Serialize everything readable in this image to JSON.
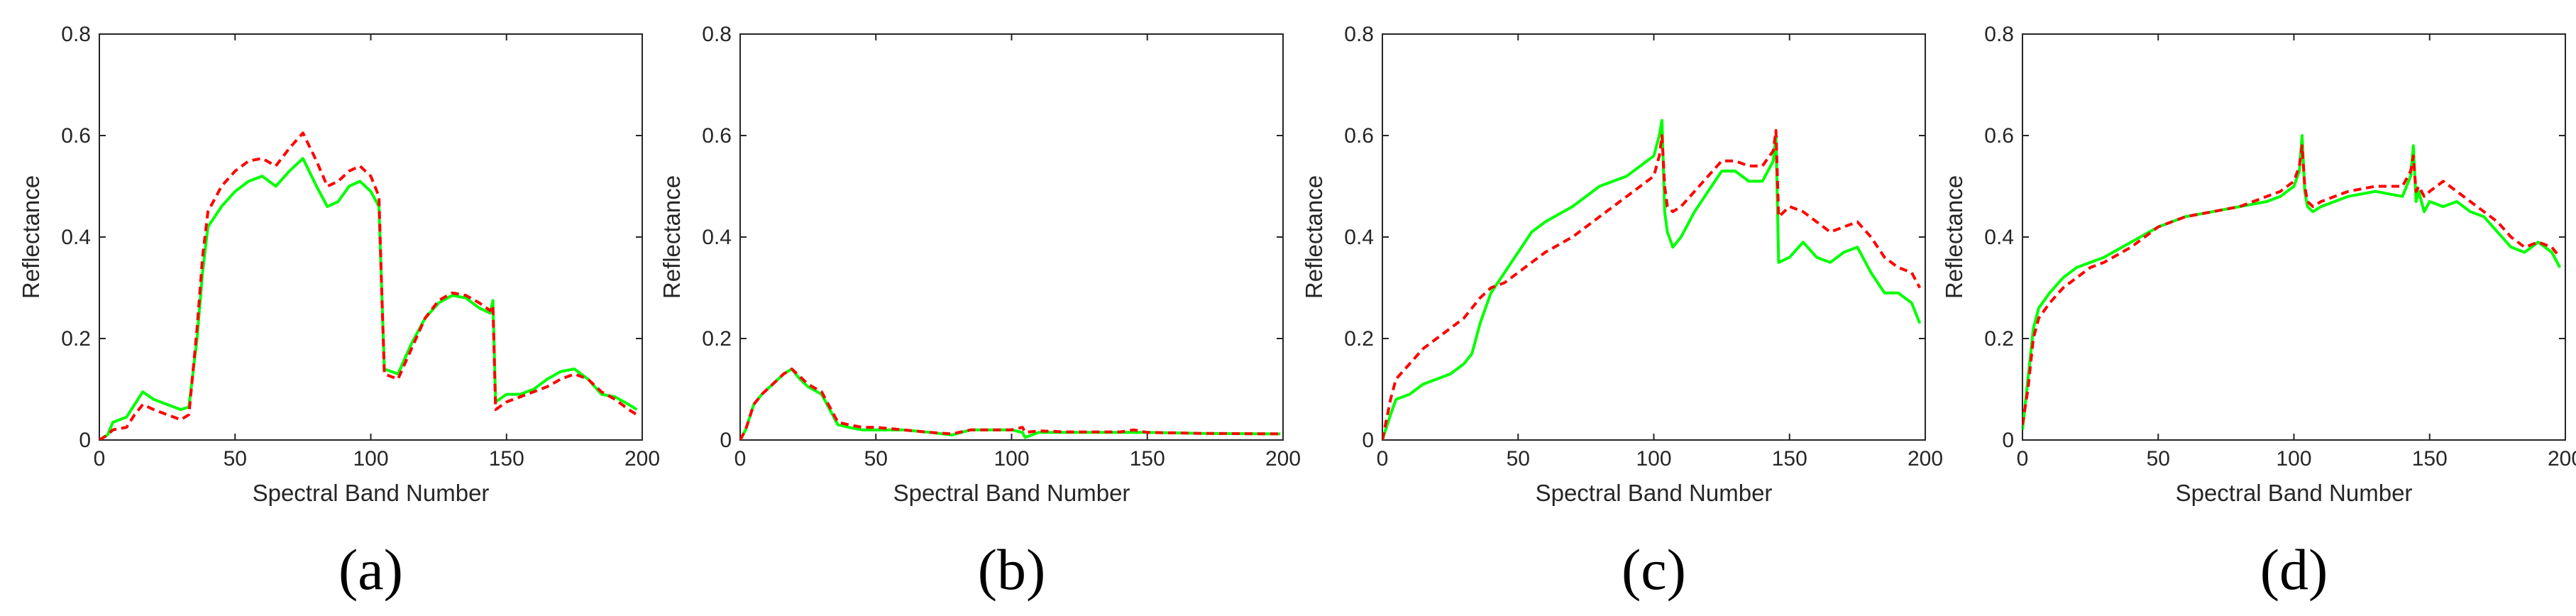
{
  "chart_data": [
    {
      "type": "line",
      "panel_label": "(a)",
      "xlabel": "Spectral Band Number",
      "ylabel": "Reflectance",
      "xlim": [
        0,
        200
      ],
      "ylim": [
        0,
        0.8
      ],
      "xticks": [
        "0",
        "50",
        "100",
        "150",
        "200"
      ],
      "yticks": [
        "0",
        "0.2",
        "0.4",
        "0.6",
        "0.8"
      ],
      "grid": false,
      "legend": "none",
      "series": [
        {
          "style": "solid",
          "color": "#00ff00",
          "x": [
            0,
            3,
            5,
            10,
            13,
            16,
            20,
            25,
            30,
            33,
            36,
            38,
            40,
            45,
            50,
            55,
            60,
            65,
            70,
            75,
            80,
            84,
            88,
            92,
            96,
            100,
            103,
            104,
            105,
            110,
            115,
            120,
            125,
            130,
            135,
            140,
            144,
            145,
            146,
            150,
            155,
            160,
            165,
            170,
            175,
            180,
            185,
            190,
            195,
            198
          ],
          "y": [
            0.0,
            0.01,
            0.035,
            0.045,
            0.07,
            0.095,
            0.08,
            0.07,
            0.06,
            0.065,
            0.2,
            0.33,
            0.42,
            0.46,
            0.49,
            0.51,
            0.52,
            0.5,
            0.53,
            0.555,
            0.5,
            0.46,
            0.47,
            0.5,
            0.51,
            0.49,
            0.46,
            0.3,
            0.14,
            0.13,
            0.19,
            0.24,
            0.27,
            0.285,
            0.28,
            0.26,
            0.25,
            0.275,
            0.075,
            0.09,
            0.09,
            0.1,
            0.12,
            0.135,
            0.14,
            0.12,
            0.09,
            0.085,
            0.07,
            0.06
          ]
        },
        {
          "style": "dashed",
          "color": "#ff0000",
          "x": [
            0,
            3,
            5,
            10,
            13,
            16,
            20,
            25,
            30,
            33,
            36,
            38,
            40,
            45,
            50,
            55,
            60,
            65,
            70,
            75,
            80,
            84,
            88,
            92,
            96,
            100,
            103,
            104,
            105,
            110,
            115,
            120,
            125,
            130,
            135,
            140,
            144,
            145,
            146,
            150,
            155,
            160,
            165,
            170,
            175,
            180,
            185,
            190,
            195,
            198
          ],
          "y": [
            0.0,
            0.01,
            0.02,
            0.025,
            0.05,
            0.07,
            0.06,
            0.05,
            0.04,
            0.05,
            0.22,
            0.36,
            0.45,
            0.5,
            0.53,
            0.55,
            0.555,
            0.54,
            0.575,
            0.605,
            0.55,
            0.5,
            0.51,
            0.53,
            0.54,
            0.52,
            0.48,
            0.3,
            0.13,
            0.12,
            0.18,
            0.24,
            0.275,
            0.29,
            0.285,
            0.27,
            0.255,
            0.265,
            0.06,
            0.075,
            0.085,
            0.095,
            0.105,
            0.12,
            0.13,
            0.12,
            0.095,
            0.08,
            0.06,
            0.05
          ]
        }
      ]
    },
    {
      "type": "line",
      "panel_label": "(b)",
      "xlabel": "Spectral Band Number",
      "ylabel": "Reflectance",
      "xlim": [
        0,
        200
      ],
      "ylim": [
        0,
        0.8
      ],
      "xticks": [
        "0",
        "50",
        "100",
        "150",
        "200"
      ],
      "yticks": [
        "0",
        "0.2",
        "0.4",
        "0.6",
        "0.8"
      ],
      "grid": false,
      "legend": "none",
      "series": [
        {
          "style": "solid",
          "color": "#00ff00",
          "x": [
            0,
            2,
            5,
            8,
            12,
            16,
            19,
            22,
            25,
            30,
            33,
            36,
            40,
            45,
            50,
            60,
            70,
            78,
            85,
            100,
            104,
            105,
            110,
            120,
            140,
            145,
            150,
            170,
            199
          ],
          "y": [
            0.0,
            0.02,
            0.07,
            0.09,
            0.11,
            0.13,
            0.14,
            0.12,
            0.105,
            0.09,
            0.06,
            0.03,
            0.025,
            0.02,
            0.02,
            0.02,
            0.015,
            0.01,
            0.02,
            0.02,
            0.015,
            0.005,
            0.015,
            0.015,
            0.015,
            0.015,
            0.015,
            0.013,
            0.012
          ]
        },
        {
          "style": "dashed",
          "color": "#ff0000",
          "x": [
            0,
            2,
            5,
            8,
            12,
            16,
            19,
            22,
            25,
            30,
            33,
            36,
            40,
            45,
            50,
            60,
            70,
            78,
            85,
            100,
            104,
            105,
            110,
            120,
            140,
            145,
            150,
            170,
            199
          ],
          "y": [
            0.0,
            0.02,
            0.07,
            0.09,
            0.11,
            0.13,
            0.14,
            0.125,
            0.11,
            0.095,
            0.065,
            0.035,
            0.03,
            0.025,
            0.025,
            0.02,
            0.015,
            0.012,
            0.02,
            0.02,
            0.025,
            0.015,
            0.018,
            0.016,
            0.016,
            0.02,
            0.015,
            0.013,
            0.012
          ]
        }
      ]
    },
    {
      "type": "line",
      "panel_label": "(c)",
      "xlabel": "Spectral Band Number",
      "ylabel": "Reflectance",
      "xlim": [
        0,
        200
      ],
      "ylim": [
        0,
        0.8
      ],
      "xticks": [
        "0",
        "50",
        "100",
        "150",
        "200"
      ],
      "yticks": [
        "0",
        "0.2",
        "0.4",
        "0.6",
        "0.8"
      ],
      "grid": false,
      "legend": "none",
      "series": [
        {
          "style": "solid",
          "color": "#00ff00",
          "x": [
            0,
            3,
            5,
            10,
            15,
            20,
            25,
            30,
            33,
            36,
            40,
            45,
            50,
            55,
            60,
            70,
            80,
            90,
            95,
            100,
            102,
            103,
            104,
            105,
            107,
            110,
            115,
            120,
            125,
            130,
            135,
            140,
            144,
            145,
            146,
            150,
            155,
            160,
            165,
            170,
            175,
            180,
            185,
            190,
            195,
            198
          ],
          "y": [
            0.0,
            0.05,
            0.08,
            0.09,
            0.11,
            0.12,
            0.13,
            0.15,
            0.17,
            0.23,
            0.29,
            0.33,
            0.37,
            0.41,
            0.43,
            0.46,
            0.5,
            0.52,
            0.54,
            0.56,
            0.6,
            0.63,
            0.45,
            0.41,
            0.38,
            0.4,
            0.45,
            0.49,
            0.53,
            0.53,
            0.51,
            0.51,
            0.55,
            0.6,
            0.35,
            0.36,
            0.39,
            0.36,
            0.35,
            0.37,
            0.38,
            0.33,
            0.29,
            0.29,
            0.27,
            0.23
          ]
        },
        {
          "style": "dashed",
          "color": "#ff0000",
          "x": [
            0,
            3,
            5,
            10,
            15,
            20,
            25,
            30,
            33,
            36,
            40,
            45,
            50,
            55,
            60,
            70,
            80,
            90,
            95,
            100,
            102,
            103,
            104,
            105,
            107,
            110,
            115,
            120,
            125,
            130,
            135,
            140,
            144,
            145,
            146,
            150,
            155,
            160,
            165,
            170,
            175,
            180,
            185,
            190,
            195,
            198
          ],
          "y": [
            0.0,
            0.08,
            0.12,
            0.15,
            0.18,
            0.2,
            0.22,
            0.24,
            0.26,
            0.28,
            0.3,
            0.31,
            0.33,
            0.35,
            0.37,
            0.4,
            0.44,
            0.48,
            0.5,
            0.52,
            0.56,
            0.6,
            0.5,
            0.46,
            0.45,
            0.46,
            0.49,
            0.52,
            0.55,
            0.55,
            0.54,
            0.54,
            0.57,
            0.61,
            0.44,
            0.46,
            0.45,
            0.43,
            0.41,
            0.42,
            0.43,
            0.4,
            0.36,
            0.34,
            0.33,
            0.3
          ]
        }
      ]
    },
    {
      "type": "line",
      "panel_label": "(d)",
      "xlabel": "Spectral Band Number",
      "ylabel": "Reflectance",
      "xlim": [
        0,
        200
      ],
      "ylim": [
        0,
        0.8
      ],
      "xticks": [
        "0",
        "50",
        "100",
        "150",
        "200"
      ],
      "yticks": [
        "0",
        "0.2",
        "0.4",
        "0.6",
        "0.8"
      ],
      "grid": false,
      "legend": "none",
      "series": [
        {
          "style": "solid",
          "color": "#00ff00",
          "x": [
            0,
            2,
            4,
            6,
            10,
            15,
            20,
            25,
            30,
            40,
            50,
            60,
            70,
            80,
            90,
            95,
            100,
            102,
            103,
            104,
            105,
            107,
            110,
            120,
            130,
            140,
            143,
            144,
            145,
            146,
            148,
            150,
            155,
            160,
            165,
            170,
            175,
            180,
            185,
            190,
            195,
            198
          ],
          "y": [
            0.02,
            0.12,
            0.22,
            0.26,
            0.29,
            0.32,
            0.34,
            0.35,
            0.36,
            0.39,
            0.42,
            0.44,
            0.45,
            0.46,
            0.47,
            0.48,
            0.5,
            0.53,
            0.6,
            0.49,
            0.46,
            0.45,
            0.46,
            0.48,
            0.49,
            0.48,
            0.52,
            0.58,
            0.47,
            0.49,
            0.45,
            0.47,
            0.46,
            0.47,
            0.45,
            0.44,
            0.41,
            0.38,
            0.37,
            0.39,
            0.37,
            0.34
          ]
        },
        {
          "style": "dashed",
          "color": "#ff0000",
          "x": [
            0,
            2,
            4,
            6,
            10,
            15,
            20,
            25,
            30,
            40,
            50,
            60,
            70,
            80,
            90,
            95,
            100,
            102,
            103,
            104,
            105,
            107,
            110,
            120,
            130,
            140,
            143,
            144,
            145,
            146,
            148,
            150,
            155,
            160,
            165,
            170,
            175,
            180,
            185,
            190,
            195,
            198
          ],
          "y": [
            0.03,
            0.1,
            0.2,
            0.24,
            0.27,
            0.3,
            0.32,
            0.34,
            0.35,
            0.38,
            0.42,
            0.44,
            0.45,
            0.46,
            0.48,
            0.49,
            0.51,
            0.54,
            0.58,
            0.5,
            0.47,
            0.46,
            0.47,
            0.49,
            0.5,
            0.5,
            0.53,
            0.56,
            0.49,
            0.5,
            0.48,
            0.49,
            0.51,
            0.49,
            0.47,
            0.45,
            0.43,
            0.4,
            0.38,
            0.39,
            0.38,
            0.36
          ]
        }
      ]
    }
  ]
}
